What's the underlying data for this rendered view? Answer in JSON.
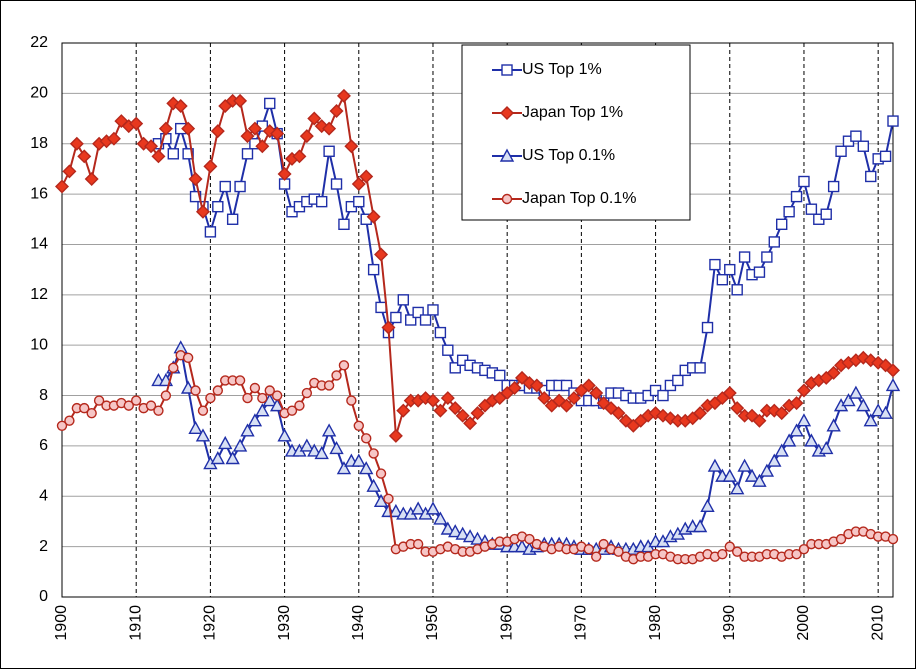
{
  "chart_data": {
    "type": "line",
    "x": [
      1900,
      1901,
      1902,
      1903,
      1904,
      1905,
      1906,
      1907,
      1908,
      1909,
      1910,
      1911,
      1912,
      1913,
      1914,
      1915,
      1916,
      1917,
      1918,
      1919,
      1920,
      1921,
      1922,
      1923,
      1924,
      1925,
      1926,
      1927,
      1928,
      1929,
      1930,
      1931,
      1932,
      1933,
      1934,
      1935,
      1936,
      1937,
      1938,
      1939,
      1940,
      1941,
      1942,
      1943,
      1944,
      1945,
      1946,
      1947,
      1948,
      1949,
      1950,
      1951,
      1952,
      1953,
      1954,
      1955,
      1956,
      1957,
      1958,
      1959,
      1960,
      1961,
      1962,
      1963,
      1964,
      1965,
      1966,
      1967,
      1968,
      1969,
      1970,
      1971,
      1972,
      1973,
      1974,
      1975,
      1976,
      1977,
      1978,
      1979,
      1980,
      1981,
      1982,
      1983,
      1984,
      1985,
      1986,
      1987,
      1988,
      1989,
      1990,
      1991,
      1992,
      1993,
      1994,
      1995,
      1996,
      1997,
      1998,
      1999,
      2000,
      2001,
      2002,
      2003,
      2004,
      2005,
      2006,
      2007,
      2008,
      2009,
      2010,
      2011,
      2012
    ],
    "xlim": [
      1900,
      2012
    ],
    "xticks": [
      1900,
      1910,
      1920,
      1930,
      1940,
      1950,
      1960,
      1970,
      1980,
      1990,
      2000,
      2010
    ],
    "ylim": [
      0,
      22
    ],
    "yticks": [
      0,
      2,
      4,
      6,
      8,
      10,
      12,
      14,
      16,
      18,
      20,
      22
    ],
    "grid": true,
    "legend": "upper right",
    "series": [
      {
        "name": "US Top 1%",
        "color": "#1f2fa8",
        "marker": "square",
        "values": [
          null,
          null,
          null,
          null,
          null,
          null,
          null,
          null,
          null,
          null,
          null,
          null,
          null,
          18.0,
          18.2,
          17.6,
          18.6,
          17.6,
          15.9,
          15.5,
          14.5,
          15.5,
          16.3,
          15.0,
          16.3,
          17.6,
          18.0,
          18.7,
          19.6,
          18.4,
          16.4,
          15.3,
          15.5,
          15.7,
          15.8,
          15.7,
          17.7,
          16.4,
          14.8,
          15.5,
          15.7,
          15.0,
          13.0,
          11.5,
          10.5,
          11.1,
          11.8,
          11.0,
          11.3,
          11.0,
          11.4,
          10.5,
          9.8,
          9.1,
          9.4,
          9.2,
          9.1,
          9.0,
          8.9,
          8.8,
          8.4,
          8.4,
          8.4,
          8.3,
          8.3,
          8.2,
          8.4,
          8.4,
          8.4,
          8.1,
          7.8,
          7.8,
          7.8,
          7.7,
          8.1,
          8.1,
          8.0,
          7.9,
          7.9,
          8.0,
          8.2,
          8.0,
          8.4,
          8.6,
          9.0,
          9.1,
          9.1,
          10.7,
          13.2,
          12.6,
          13.0,
          12.2,
          13.5,
          12.8,
          12.9,
          13.5,
          14.1,
          14.8,
          15.3,
          15.9,
          16.5,
          15.4,
          15.0,
          15.2,
          16.3,
          17.7,
          18.1,
          18.3,
          17.9,
          16.7,
          17.4,
          17.5,
          18.9
        ]
      },
      {
        "name": "Japan Top 1%",
        "color": "#b5281c",
        "marker": "diamond",
        "values": [
          16.3,
          16.9,
          18.0,
          17.5,
          16.6,
          18.0,
          18.1,
          18.2,
          18.9,
          18.7,
          18.8,
          18.0,
          17.9,
          17.5,
          18.6,
          19.6,
          19.5,
          18.6,
          16.6,
          15.3,
          17.1,
          18.5,
          19.5,
          19.7,
          19.7,
          18.3,
          18.6,
          17.9,
          18.5,
          18.4,
          16.8,
          17.4,
          17.5,
          18.3,
          19.0,
          18.7,
          18.6,
          19.3,
          19.9,
          17.9,
          16.4,
          16.7,
          15.1,
          13.6,
          10.7,
          6.4,
          7.4,
          7.8,
          7.8,
          7.9,
          7.8,
          7.4,
          7.9,
          7.5,
          7.2,
          6.9,
          7.3,
          7.6,
          7.8,
          7.9,
          8.1,
          8.3,
          8.7,
          8.5,
          8.4,
          7.9,
          7.6,
          7.8,
          7.6,
          7.9,
          8.2,
          8.4,
          8.1,
          7.7,
          7.5,
          7.3,
          7.0,
          6.8,
          7.0,
          7.2,
          7.3,
          7.2,
          7.1,
          7.0,
          7.0,
          7.1,
          7.3,
          7.6,
          7.7,
          7.9,
          8.1,
          7.5,
          7.2,
          7.2,
          7.0,
          7.4,
          7.4,
          7.3,
          7.6,
          7.7,
          8.2,
          8.5,
          8.6,
          8.7,
          8.9,
          9.2,
          9.3,
          9.4,
          9.5,
          9.4,
          9.3,
          9.2,
          9.0
        ]
      },
      {
        "name": "US Top 0.1%",
        "color": "#1f2fa8",
        "marker": "triangle",
        "values": [
          null,
          null,
          null,
          null,
          null,
          null,
          null,
          null,
          null,
          null,
          null,
          null,
          null,
          8.6,
          8.6,
          9.1,
          9.9,
          8.3,
          6.7,
          6.4,
          5.3,
          5.5,
          6.1,
          5.5,
          6.0,
          6.6,
          7.0,
          7.4,
          7.8,
          7.6,
          6.4,
          5.8,
          5.8,
          6.0,
          5.8,
          5.7,
          6.6,
          5.9,
          5.1,
          5.4,
          5.4,
          5.1,
          4.4,
          3.8,
          3.4,
          3.4,
          3.3,
          3.3,
          3.5,
          3.3,
          3.5,
          3.1,
          2.7,
          2.6,
          2.5,
          2.4,
          2.3,
          2.2,
          2.1,
          2.1,
          2.0,
          2.0,
          2.0,
          1.9,
          2.0,
          2.1,
          2.1,
          2.1,
          2.1,
          2.0,
          1.9,
          1.9,
          1.9,
          1.9,
          2.0,
          1.9,
          1.9,
          1.9,
          2.0,
          2.0,
          2.2,
          2.2,
          2.4,
          2.5,
          2.7,
          2.8,
          2.8,
          3.6,
          5.2,
          4.8,
          4.8,
          4.3,
          5.2,
          4.8,
          4.6,
          5.0,
          5.4,
          5.8,
          6.2,
          6.6,
          7.0,
          6.2,
          5.8,
          5.9,
          6.8,
          7.6,
          7.8,
          8.1,
          7.6,
          7.0,
          7.4,
          7.3,
          8.4
        ]
      },
      {
        "name": "Japan Top 0.1%",
        "color": "#b5281c",
        "marker": "circle",
        "values": [
          6.8,
          7.0,
          7.5,
          7.5,
          7.3,
          7.8,
          7.6,
          7.6,
          7.7,
          7.6,
          7.8,
          7.5,
          7.6,
          7.4,
          8.0,
          9.1,
          9.6,
          9.5,
          8.2,
          7.4,
          7.9,
          8.2,
          8.6,
          8.6,
          8.6,
          7.9,
          8.3,
          7.9,
          8.2,
          8.0,
          7.3,
          7.4,
          7.6,
          8.1,
          8.5,
          8.4,
          8.4,
          8.8,
          9.2,
          7.8,
          6.8,
          6.3,
          5.7,
          4.9,
          3.9,
          1.9,
          2.0,
          2.1,
          2.1,
          1.8,
          1.8,
          1.9,
          2.0,
          1.9,
          1.8,
          1.8,
          1.9,
          2.0,
          2.1,
          2.2,
          2.2,
          2.3,
          2.4,
          2.3,
          2.1,
          2.0,
          1.9,
          2.0,
          1.9,
          1.9,
          2.0,
          1.9,
          1.6,
          2.1,
          1.9,
          1.8,
          1.6,
          1.5,
          1.6,
          1.6,
          1.7,
          1.7,
          1.6,
          1.5,
          1.5,
          1.5,
          1.6,
          1.7,
          1.6,
          1.7,
          2.0,
          1.8,
          1.6,
          1.6,
          1.6,
          1.7,
          1.7,
          1.6,
          1.7,
          1.7,
          1.9,
          2.1,
          2.1,
          2.1,
          2.2,
          2.3,
          2.5,
          2.6,
          2.6,
          2.5,
          2.4,
          2.4,
          2.3
        ]
      }
    ]
  }
}
